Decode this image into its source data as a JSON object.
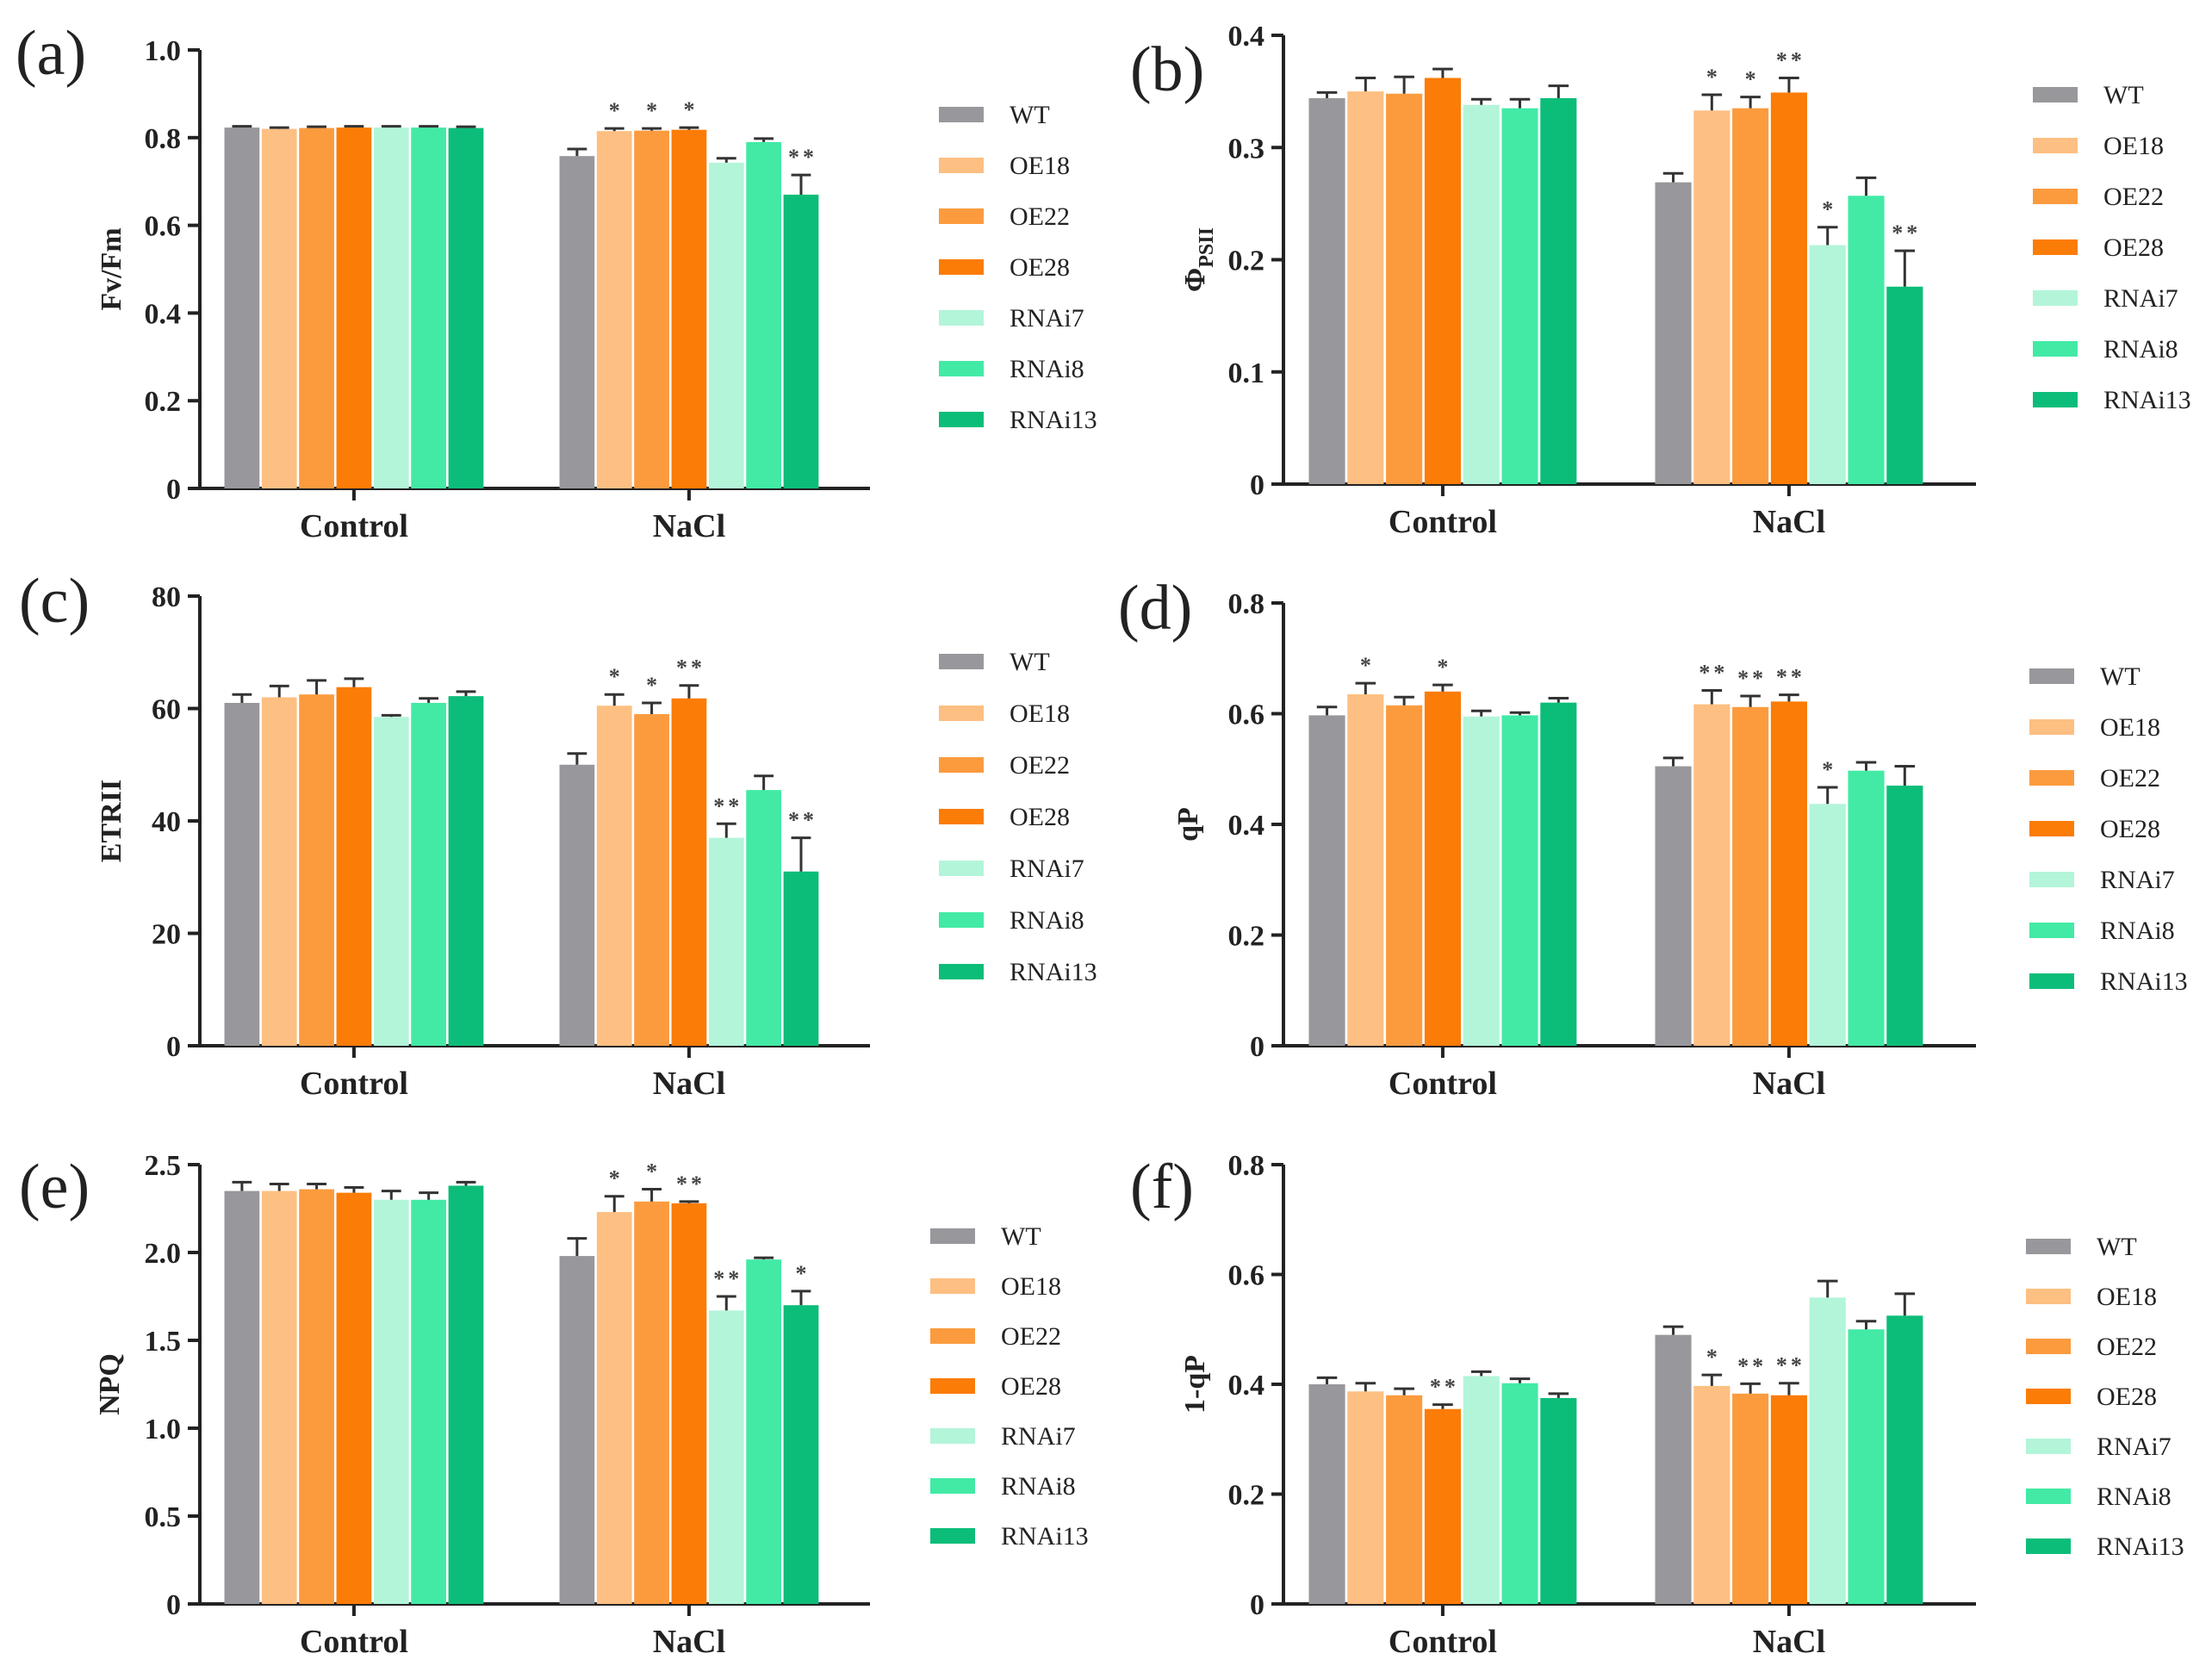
{
  "chart_data": [
    {
      "type": "bar",
      "panel_label": "(a)",
      "ylabel": "Fv/Fm",
      "ylim": [
        0,
        1.0
      ],
      "yticks": [
        "0",
        "0.2",
        "0.4",
        "0.6",
        "0.8",
        "1.0"
      ],
      "categories": [
        "Control",
        "NaCl"
      ],
      "series": [
        {
          "name": "WT",
          "values": [
            0.823,
            0.758
          ],
          "errors": [
            0.003,
            0.016
          ],
          "significance": [
            "",
            ""
          ]
        },
        {
          "name": "OE18",
          "values": [
            0.82,
            0.815
          ],
          "errors": [
            0.003,
            0.006
          ],
          "significance": [
            "",
            "*"
          ]
        },
        {
          "name": "OE22",
          "values": [
            0.822,
            0.816
          ],
          "errors": [
            0.003,
            0.005
          ],
          "significance": [
            "",
            "*"
          ]
        },
        {
          "name": "OE28",
          "values": [
            0.823,
            0.818
          ],
          "errors": [
            0.003,
            0.005
          ],
          "significance": [
            "",
            "*"
          ]
        },
        {
          "name": "RNAi7",
          "values": [
            0.823,
            0.743
          ],
          "errors": [
            0.003,
            0.01
          ],
          "significance": [
            "",
            ""
          ]
        },
        {
          "name": "RNAi8",
          "values": [
            0.823,
            0.79
          ],
          "errors": [
            0.003,
            0.008
          ],
          "significance": [
            "",
            ""
          ]
        },
        {
          "name": "RNAi13",
          "values": [
            0.822,
            0.67
          ],
          "errors": [
            0.003,
            0.045
          ],
          "significance": [
            "",
            "**"
          ]
        }
      ]
    },
    {
      "type": "bar",
      "panel_label": "(b)",
      "ylabel": "ΦPSII",
      "ylabel_main": "Φ",
      "ylabel_sub": "PSII",
      "ylim": [
        0,
        0.4
      ],
      "yticks": [
        "0",
        "0.1",
        "0.2",
        "0.3",
        "0.4"
      ],
      "categories": [
        "Control",
        "NaCl"
      ],
      "series": [
        {
          "name": "WT",
          "values": [
            0.344,
            0.269
          ],
          "errors": [
            0.005,
            0.008
          ],
          "significance": [
            "",
            ""
          ]
        },
        {
          "name": "OE18",
          "values": [
            0.35,
            0.333
          ],
          "errors": [
            0.012,
            0.014
          ],
          "significance": [
            "",
            "*"
          ]
        },
        {
          "name": "OE22",
          "values": [
            0.348,
            0.335
          ],
          "errors": [
            0.015,
            0.01
          ],
          "significance": [
            "",
            "*"
          ]
        },
        {
          "name": "OE28",
          "values": [
            0.362,
            0.349
          ],
          "errors": [
            0.008,
            0.013
          ],
          "significance": [
            "",
            "**"
          ]
        },
        {
          "name": "RNAi7",
          "values": [
            0.338,
            0.213
          ],
          "errors": [
            0.005,
            0.016
          ],
          "significance": [
            "",
            "*"
          ]
        },
        {
          "name": "RNAi8",
          "values": [
            0.335,
            0.257
          ],
          "errors": [
            0.008,
            0.016
          ],
          "significance": [
            "",
            ""
          ]
        },
        {
          "name": "RNAi13",
          "values": [
            0.344,
            0.176
          ],
          "errors": [
            0.011,
            0.032
          ],
          "significance": [
            "",
            "**"
          ]
        }
      ]
    },
    {
      "type": "bar",
      "panel_label": "(c)",
      "ylabel": "ETRII",
      "ylim": [
        0,
        80
      ],
      "yticks": [
        "0",
        "20",
        "40",
        "60",
        "80"
      ],
      "categories": [
        "Control",
        "NaCl"
      ],
      "series": [
        {
          "name": "WT",
          "values": [
            61.0,
            50.0
          ],
          "errors": [
            1.5,
            2.0
          ],
          "significance": [
            "",
            ""
          ]
        },
        {
          "name": "OE18",
          "values": [
            62.0,
            60.5
          ],
          "errors": [
            2.0,
            2.0
          ],
          "significance": [
            "",
            "*"
          ]
        },
        {
          "name": "OE22",
          "values": [
            62.5,
            59.0
          ],
          "errors": [
            2.5,
            2.0
          ],
          "significance": [
            "",
            "*"
          ]
        },
        {
          "name": "OE28",
          "values": [
            63.8,
            61.8
          ],
          "errors": [
            1.5,
            2.3
          ],
          "significance": [
            "",
            "**"
          ]
        },
        {
          "name": "RNAi7",
          "values": [
            58.5,
            37.0
          ],
          "errors": [
            0.3,
            2.5
          ],
          "significance": [
            "",
            "**"
          ]
        },
        {
          "name": "RNAi8",
          "values": [
            61.0,
            45.5
          ],
          "errors": [
            0.8,
            2.5
          ],
          "significance": [
            "",
            ""
          ]
        },
        {
          "name": "RNAi13",
          "values": [
            62.2,
            31.0
          ],
          "errors": [
            0.8,
            6.0
          ],
          "significance": [
            "",
            "**"
          ]
        }
      ]
    },
    {
      "type": "bar",
      "panel_label": "(d)",
      "ylabel": "qP",
      "ylim": [
        0,
        0.8
      ],
      "yticks": [
        "0",
        "0.2",
        "0.4",
        "0.6",
        "0.8"
      ],
      "categories": [
        "Control",
        "NaCl"
      ],
      "series": [
        {
          "name": "WT",
          "values": [
            0.597,
            0.505
          ],
          "errors": [
            0.015,
            0.015
          ],
          "significance": [
            "",
            ""
          ]
        },
        {
          "name": "OE18",
          "values": [
            0.635,
            0.617
          ],
          "errors": [
            0.02,
            0.025
          ],
          "significance": [
            "*",
            "**"
          ]
        },
        {
          "name": "OE22",
          "values": [
            0.615,
            0.612
          ],
          "errors": [
            0.015,
            0.02
          ],
          "significance": [
            "",
            "**"
          ]
        },
        {
          "name": "OE28",
          "values": [
            0.64,
            0.622
          ],
          "errors": [
            0.012,
            0.012
          ],
          "significance": [
            "*",
            "**"
          ]
        },
        {
          "name": "RNAi7",
          "values": [
            0.595,
            0.437
          ],
          "errors": [
            0.01,
            0.03
          ],
          "significance": [
            "",
            "*"
          ]
        },
        {
          "name": "RNAi8",
          "values": [
            0.597,
            0.497
          ],
          "errors": [
            0.005,
            0.015
          ],
          "significance": [
            "",
            ""
          ]
        },
        {
          "name": "RNAi13",
          "values": [
            0.62,
            0.47
          ],
          "errors": [
            0.008,
            0.035
          ],
          "significance": [
            "",
            ""
          ]
        }
      ]
    },
    {
      "type": "bar",
      "panel_label": "(e)",
      "ylabel": "NPQ",
      "ylim": [
        0,
        2.5
      ],
      "yticks": [
        "0",
        "0.5",
        "1.0",
        "1.5",
        "2.0",
        "2.5"
      ],
      "categories": [
        "Control",
        "NaCl"
      ],
      "series": [
        {
          "name": "WT",
          "values": [
            2.35,
            1.98
          ],
          "errors": [
            0.05,
            0.1
          ],
          "significance": [
            "",
            ""
          ]
        },
        {
          "name": "OE18",
          "values": [
            2.35,
            2.23
          ],
          "errors": [
            0.04,
            0.09
          ],
          "significance": [
            "",
            "*"
          ]
        },
        {
          "name": "OE22",
          "values": [
            2.36,
            2.29
          ],
          "errors": [
            0.03,
            0.07
          ],
          "significance": [
            "",
            "*"
          ]
        },
        {
          "name": "OE28",
          "values": [
            2.34,
            2.28
          ],
          "errors": [
            0.03,
            0.01
          ],
          "significance": [
            "",
            "**"
          ]
        },
        {
          "name": "RNAi7",
          "values": [
            2.3,
            1.67
          ],
          "errors": [
            0.05,
            0.08
          ],
          "significance": [
            "",
            "**"
          ]
        },
        {
          "name": "RNAi8",
          "values": [
            2.3,
            1.96
          ],
          "errors": [
            0.04,
            0.01
          ],
          "significance": [
            "",
            ""
          ]
        },
        {
          "name": "RNAi13",
          "values": [
            2.38,
            1.7
          ],
          "errors": [
            0.02,
            0.08
          ],
          "significance": [
            "",
            "*"
          ]
        }
      ]
    },
    {
      "type": "bar",
      "panel_label": "(f)",
      "ylabel": "1-qP",
      "ylim": [
        0,
        0.8
      ],
      "yticks": [
        "0",
        "0.2",
        "0.4",
        "0.6",
        "0.8"
      ],
      "categories": [
        "Control",
        "NaCl"
      ],
      "series": [
        {
          "name": "WT",
          "values": [
            0.4,
            0.49
          ],
          "errors": [
            0.012,
            0.015
          ],
          "significance": [
            "",
            ""
          ]
        },
        {
          "name": "OE18",
          "values": [
            0.387,
            0.397
          ],
          "errors": [
            0.015,
            0.02
          ],
          "significance": [
            "",
            "*"
          ]
        },
        {
          "name": "OE22",
          "values": [
            0.38,
            0.383
          ],
          "errors": [
            0.012,
            0.018
          ],
          "significance": [
            "",
            "**"
          ]
        },
        {
          "name": "OE28",
          "values": [
            0.355,
            0.38
          ],
          "errors": [
            0.008,
            0.022
          ],
          "significance": [
            "**",
            "**"
          ]
        },
        {
          "name": "RNAi7",
          "values": [
            0.415,
            0.558
          ],
          "errors": [
            0.008,
            0.03
          ],
          "significance": [
            "",
            ""
          ]
        },
        {
          "name": "RNAi8",
          "values": [
            0.402,
            0.5
          ],
          "errors": [
            0.008,
            0.015
          ],
          "significance": [
            "",
            ""
          ]
        },
        {
          "name": "RNAi13",
          "values": [
            0.375,
            0.525
          ],
          "errors": [
            0.008,
            0.04
          ],
          "significance": [
            "",
            ""
          ]
        }
      ]
    }
  ],
  "colors": {
    "WT": "#98979b",
    "OE18": "#fdbf82",
    "OE22": "#fb9b3e",
    "OE28": "#fb7c06",
    "RNAi7": "#b3f5d9",
    "RNAi8": "#42eaa5",
    "RNAi13": "#0cbd79",
    "axis": "#222222",
    "errorbar": "#333333"
  }
}
